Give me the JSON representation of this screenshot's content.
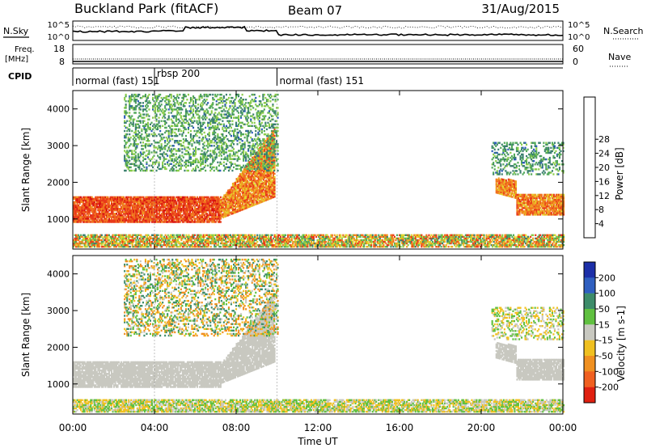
{
  "chart_data": {
    "type": "heatmap",
    "title": {
      "station": "Buckland Park (fitACF)",
      "beam": "Beam 07",
      "date": "31/Aug/2015"
    },
    "x": {
      "label": "Time UT",
      "range_hours": [
        0,
        24
      ],
      "tick_hours": [
        0,
        4,
        8,
        12,
        16,
        20,
        24
      ],
      "tick_labels": [
        "00:00",
        "04:00",
        "08:00",
        "12:00",
        "16:00",
        "20:00",
        "00:00"
      ]
    },
    "summary_panels": {
      "nsky": {
        "left_label": "N.Sky",
        "right_label": "N.Search",
        "left_ticks": [
          "10^5",
          "10^0"
        ],
        "right_ticks": [
          "10^5",
          "10^0"
        ]
      },
      "freq": {
        "left_label": "Freq.",
        "left_unit": "[MHz]",
        "right_label": "Nave",
        "left_ticks": [
          "18",
          "8"
        ],
        "right_ticks": [
          "60",
          "0"
        ]
      },
      "cpid": {
        "label": "CPID",
        "segments": [
          {
            "start_hour": 0.0,
            "end_hour": 4.0,
            "name": "normal (fast) 151"
          },
          {
            "start_hour": 4.0,
            "end_hour": 10.0,
            "name": "rbsp 200"
          },
          {
            "start_hour": 10.0,
            "end_hour": 24.0,
            "name": "normal (fast) 151"
          }
        ]
      }
    },
    "panels": [
      {
        "name": "power",
        "ylabel": "Slant Range [km]",
        "ylim": [
          180,
          4500
        ],
        "yticks": [
          1000,
          2000,
          3000,
          4000
        ],
        "colorbar": {
          "label": "Power [dB]",
          "ticks": [
            "4",
            "8",
            "12",
            "16",
            "20",
            "24",
            "28"
          ],
          "colors": [
            "#1d2bd8",
            "#2a5ab8",
            "#3b7f6f",
            "#52a95a",
            "#8ccd4a",
            "#e3d52e",
            "#f0a224",
            "#f07020",
            "#e83a1a",
            "#d61010"
          ]
        }
      },
      {
        "name": "velocity",
        "ylabel": "Slant Range [km]",
        "ylim": [
          180,
          4500
        ],
        "yticks": [
          1000,
          2000,
          3000,
          4000
        ],
        "colorbar": {
          "label": "Velocity [m s-1]",
          "ticks": [
            "200",
            "100",
            "50",
            "15",
            "-15",
            "-50",
            "-100",
            "-200"
          ],
          "colors": [
            "#1c2fa8",
            "#2f5fc0",
            "#3d8c6a",
            "#60c040",
            "#c8c8c0",
            "#f0c020",
            "#f09020",
            "#f06020",
            "#e02010"
          ]
        }
      }
    ],
    "echo_regions": [
      {
        "t_hours": [
          0.0,
          7.2
        ],
        "range_km": [
          900,
          1600
        ],
        "power_db": [
          22,
          30
        ],
        "velocity_ms": [
          -15,
          15
        ]
      },
      {
        "t_hours": [
          7.2,
          9.9
        ],
        "range_km": [
          1000,
          3500
        ],
        "power_db": [
          18,
          28
        ],
        "velocity_ms": [
          -15,
          15
        ]
      },
      {
        "t_hours": [
          2.5,
          10.0
        ],
        "range_km": [
          2300,
          4400
        ],
        "power_db": [
          6,
          16
        ],
        "velocity_ms": [
          -100,
          100
        ]
      },
      {
        "t_hours": [
          0.0,
          24.0
        ],
        "range_km": [
          180,
          550
        ],
        "power_db": [
          8,
          28
        ],
        "velocity_ms": [
          -50,
          50
        ]
      },
      {
        "t_hours": [
          20.7,
          24.0
        ],
        "range_km": [
          1100,
          1900
        ],
        "power_db": [
          18,
          28
        ],
        "velocity_ms": [
          -15,
          15
        ]
      },
      {
        "t_hours": [
          20.5,
          24.0
        ],
        "range_km": [
          2200,
          3100
        ],
        "power_db": [
          6,
          14
        ],
        "velocity_ms": [
          -50,
          50
        ]
      }
    ]
  }
}
